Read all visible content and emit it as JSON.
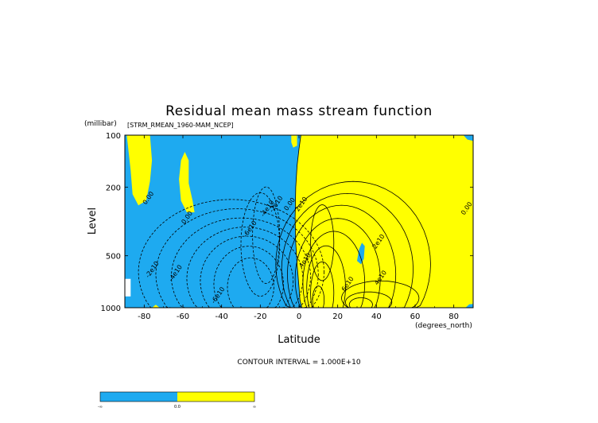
{
  "chart_data": {
    "type": "contour",
    "title": "Residual mean mass stream function",
    "variable_tag": "[STRM_RMEAN_1960-MAM_NCEP]",
    "xlabel": "Latitude",
    "x_units": "(degrees_north)",
    "ylabel": "Level",
    "y_units": "(millibar)",
    "xlim": [
      -90,
      90
    ],
    "ylim": [
      1000,
      100
    ],
    "y_scale": "log",
    "x_ticks": [
      "-80",
      "-60",
      "-40",
      "-20",
      "0",
      "20",
      "40",
      "60",
      "80"
    ],
    "x_tick_values": [
      -80,
      -60,
      -40,
      -20,
      0,
      20,
      40,
      60,
      80
    ],
    "y_ticks": [
      "100",
      "200",
      "500",
      "1000"
    ],
    "y_tick_values": [
      100,
      200,
      500,
      1000
    ],
    "contour_interval_text": "CONTOUR INTERVAL = 1.000E+10",
    "contour_labels": [
      {
        "text": "0.00",
        "lat": -77.0,
        "p": 235
      },
      {
        "text": "0.00",
        "lat": -57.0,
        "p": 305
      },
      {
        "text": "-2e10",
        "lat": -75.0,
        "p": 610
      },
      {
        "text": "-4e10",
        "lat": -63.0,
        "p": 640
      },
      {
        "text": "-6e10",
        "lat": -41.0,
        "p": 860
      },
      {
        "text": "-6e10",
        "lat": -24.5,
        "p": 355
      },
      {
        "text": "-4e10",
        "lat": -15.5,
        "p": 270
      },
      {
        "text": "-2e10",
        "lat": -11.0,
        "p": 255
      },
      {
        "text": "0.00",
        "lat": -4.0,
        "p": 255
      },
      {
        "text": "2e10",
        "lat": 2.0,
        "p": 255
      },
      {
        "text": "4e10",
        "lat": 4.0,
        "p": 540
      },
      {
        "text": "2e10",
        "lat": 42.0,
        "p": 420
      },
      {
        "text": "4e10",
        "lat": 43.0,
        "p": 680
      },
      {
        "text": "6e10",
        "lat": 26.0,
        "p": 740
      },
      {
        "text": "0.00",
        "lat": 87.5,
        "p": 270
      }
    ],
    "colorbar": {
      "labels": [
        "-∞",
        "0.0",
        "∞"
      ],
      "colors": [
        "#1eaaf0",
        "#ffff00"
      ]
    },
    "colors": {
      "negative": "#1eaaf0",
      "positive": "#ffff00",
      "contour": "#000000"
    }
  }
}
